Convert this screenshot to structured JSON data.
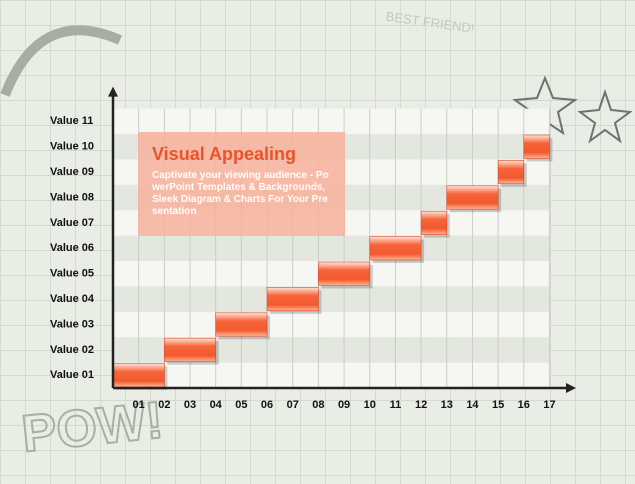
{
  "chart_data": {
    "type": "step-bar",
    "title": "Visual Appealing",
    "subtitle": "Captivate your viewing audience - PowerPoint Templates & Backgrounds, Sleek Diagram & Charts For Your Presentation",
    "y_categories": [
      "Value 01",
      "Value 02",
      "Value 03",
      "Value 04",
      "Value 05",
      "Value 06",
      "Value 07",
      "Value 08",
      "Value 09",
      "Value 10",
      "Value 11"
    ],
    "xlim": [
      0,
      17.8
    ],
    "xticks": [
      {
        "value": 1,
        "label": "01"
      },
      {
        "value": 2,
        "label": "02"
      },
      {
        "value": 3,
        "label": "03"
      },
      {
        "value": 4,
        "label": "04"
      },
      {
        "value": 5,
        "label": "05"
      },
      {
        "value": 6,
        "label": "06"
      },
      {
        "value": 7,
        "label": "07"
      },
      {
        "value": 8,
        "label": "08"
      },
      {
        "value": 9,
        "label": "09"
      },
      {
        "value": 10,
        "label": "10"
      },
      {
        "value": 11,
        "label": "11"
      },
      {
        "value": 12,
        "label": "12"
      },
      {
        "value": 13,
        "label": "13"
      },
      {
        "value": 14,
        "label": "14"
      },
      {
        "value": 15,
        "label": "15"
      },
      {
        "value": 16,
        "label": "16"
      },
      {
        "value": 17,
        "label": "17"
      }
    ],
    "color": "#f25a2e",
    "bars": [
      {
        "start": 0,
        "end": 2,
        "row": 1
      },
      {
        "start": 2,
        "end": 4,
        "row": 2
      },
      {
        "start": 4,
        "end": 6,
        "row": 3
      },
      {
        "start": 6,
        "end": 8,
        "row": 4
      },
      {
        "start": 8,
        "end": 10,
        "row": 5
      },
      {
        "start": 10,
        "end": 12,
        "row": 6
      },
      {
        "start": 12,
        "end": 13,
        "row": 7
      },
      {
        "start": 13,
        "end": 15,
        "row": 8
      },
      {
        "start": 15,
        "end": 16,
        "row": 9
      },
      {
        "start": 16,
        "end": 17,
        "row": 10
      }
    ]
  },
  "decorations": {
    "sticker": "BEST FRIEND!",
    "pow": "POW!"
  }
}
